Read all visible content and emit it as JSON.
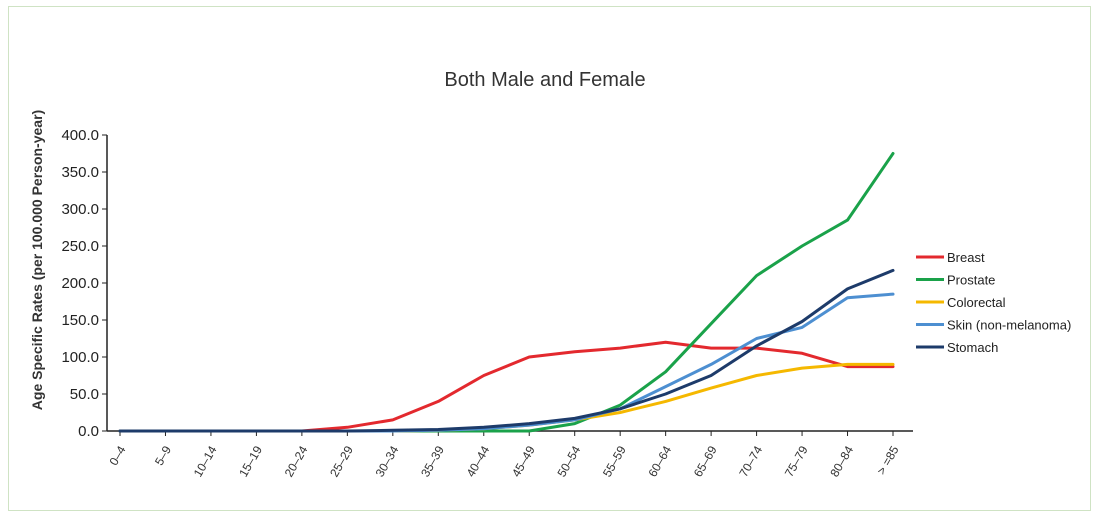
{
  "chart_data": {
    "type": "line",
    "title": "Both Male and Female",
    "xlabel": "",
    "ylabel": "Age Specific Rates (per 100.000 Person-year)",
    "ylim": [
      0,
      400
    ],
    "yticks": [
      "0.0",
      "50.0",
      "100.0",
      "150.0",
      "200.0",
      "250.0",
      "300.0",
      "350.0",
      "400.0"
    ],
    "categories": [
      "0–4",
      "5–9",
      "10–14",
      "15–19",
      "20–24",
      "25–29",
      "30–34",
      "35–39",
      "40–44",
      "45–49",
      "50–54",
      "55–59",
      "60–64",
      "65–69",
      "70–74",
      "75–79",
      "80–84",
      "> =85"
    ],
    "legend_position": "right",
    "grid": false,
    "series": [
      {
        "name": "Breast",
        "color": "#e3292e",
        "values": [
          0,
          0,
          0,
          0,
          0,
          5,
          15,
          40,
          75,
          100,
          107,
          112,
          120,
          112,
          112,
          105,
          87,
          87
        ]
      },
      {
        "name": "Prostate",
        "color": "#1aa24a",
        "values": [
          0,
          0,
          0,
          0,
          0,
          0,
          0,
          0,
          0,
          0,
          10,
          35,
          80,
          145,
          210,
          250,
          285,
          375
        ]
      },
      {
        "name": "Colorectal",
        "color": "#f5b800",
        "values": [
          0,
          0,
          0,
          0,
          0,
          0,
          0,
          1,
          3,
          8,
          15,
          25,
          40,
          58,
          75,
          85,
          90,
          90
        ]
      },
      {
        "name": "Skin (non-melanoma)",
        "color": "#4d8fd1",
        "values": [
          0,
          0,
          0,
          0,
          0,
          0,
          0,
          1,
          3,
          8,
          15,
          30,
          60,
          90,
          125,
          140,
          180,
          185
        ]
      },
      {
        "name": "Stomach",
        "color": "#1d3b6a",
        "values": [
          0,
          0,
          0,
          0,
          0,
          0,
          1,
          2,
          5,
          10,
          17,
          30,
          50,
          75,
          115,
          148,
          192,
          217
        ]
      }
    ]
  }
}
